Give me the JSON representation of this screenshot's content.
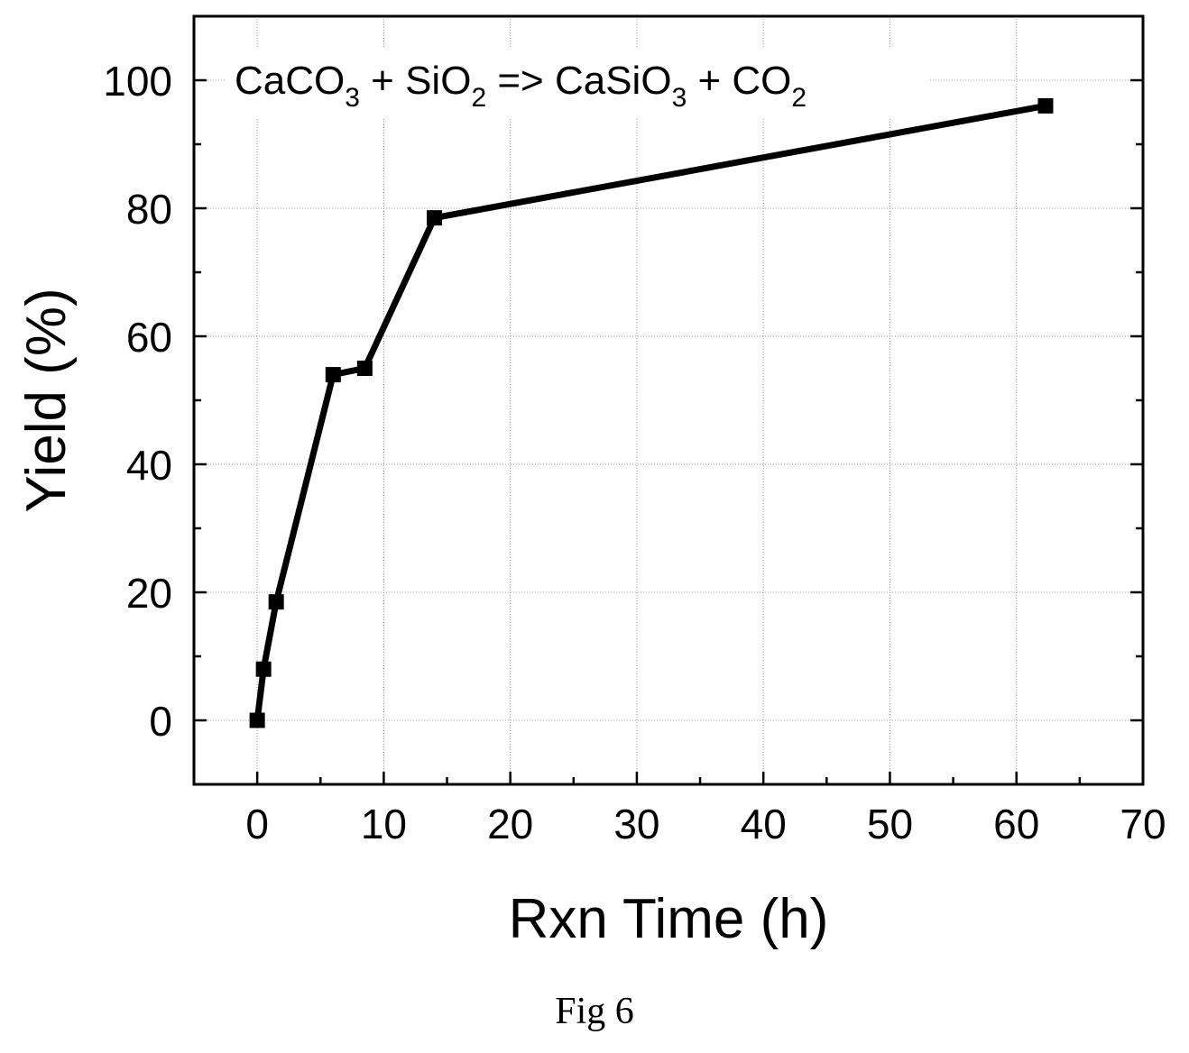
{
  "chart_data": {
    "type": "line",
    "title": "",
    "xlabel": "Rxn Time (h)",
    "ylabel": "Yield (%)",
    "xlim": [
      -5,
      70
    ],
    "ylim": [
      -10,
      110
    ],
    "xticks": [
      0,
      10,
      20,
      30,
      40,
      50,
      60,
      70
    ],
    "yticks": [
      0,
      20,
      40,
      60,
      80,
      100
    ],
    "grid": true,
    "marker": "square",
    "line_color": "#000000",
    "annotation": {
      "parts": [
        {
          "text": "CaCO",
          "sub": false
        },
        {
          "text": "3",
          "sub": true
        },
        {
          "text": " + SiO",
          "sub": false
        },
        {
          "text": "2",
          "sub": true
        },
        {
          "text": " => CaSiO",
          "sub": false
        },
        {
          "text": "3",
          "sub": true
        },
        {
          "text": " + CO",
          "sub": false
        },
        {
          "text": "2",
          "sub": true
        }
      ]
    },
    "series": [
      {
        "x": [
          0,
          0.5,
          1.5,
          6,
          8.5,
          14,
          62.3
        ],
        "y": [
          0,
          8,
          18.5,
          54,
          55,
          78.5,
          96
        ]
      }
    ]
  },
  "caption": "Fig 6"
}
